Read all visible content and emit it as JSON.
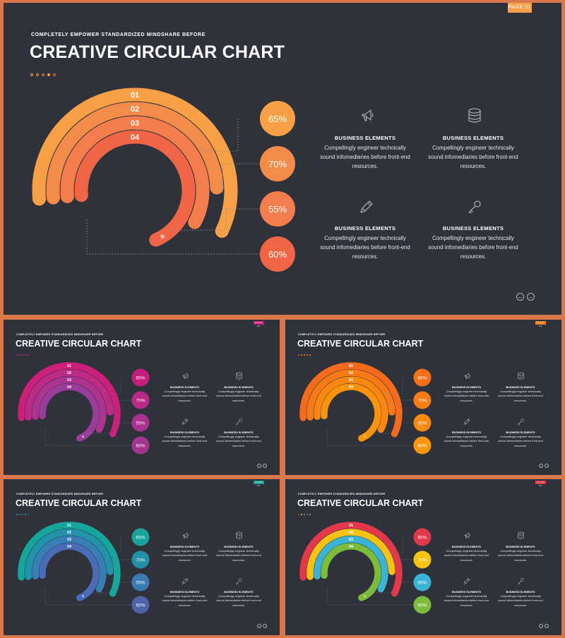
{
  "slides": [
    {
      "page": "PAGE 01",
      "tag_color": "#f7a045",
      "subtitle": "COMPLETELY EMPOWER STANDARDIZED MINDSHARE BEFORE",
      "title": "CREATIVE CIRCULAR CHART",
      "dot_colors": [
        "#f7a045",
        "#f49a4a",
        "#f2844a",
        "#f7a045",
        "#ef6840"
      ],
      "ring_labels": [
        "01",
        "02",
        "03",
        "04"
      ],
      "ring_colors": [
        "#f7a045",
        "#f38c4a",
        "#f37d4c",
        "#ef6545"
      ],
      "percents": [
        "65%",
        "70%",
        "55%",
        "60%"
      ],
      "circle_colors": [
        "#f7a045",
        "#f38c4a",
        "#f37d4c",
        "#ef6545"
      ]
    },
    {
      "page": "PAGE 01",
      "tag_color": "#d81b7a",
      "subtitle": "COMPLETELY EMPOWER STANDARDIZED MINDSHARE BEFORE",
      "title": "CREATIVE CIRCULAR CHART",
      "dot_colors": [
        "#d81b7a",
        "#c82a84",
        "#b43492",
        "#d81b7a",
        "#a23aa0"
      ],
      "ring_labels": [
        "01",
        "02",
        "03",
        "04"
      ],
      "ring_colors": [
        "#cc1f7c",
        "#bc2b85",
        "#ac348f",
        "#9a3c9a"
      ],
      "percents": [
        "65%",
        "70%",
        "55%",
        "60%"
      ],
      "circle_colors": [
        "#c41f7e",
        "#b92a86",
        "#aa318e",
        "#a4358f"
      ]
    },
    {
      "page": "PAGE 01",
      "tag_color": "#f57c1f",
      "subtitle": "COMPLETELY EMPOWER STANDARDIZED MINDSHARE BEFORE",
      "title": "CREATIVE CIRCULAR CHART",
      "dot_colors": [
        "#f57c1f",
        "#f7891a",
        "#f99313",
        "#f57c1f",
        "#fb9e0e"
      ],
      "ring_labels": [
        "01",
        "02",
        "03",
        "04"
      ],
      "ring_colors": [
        "#f56b1b",
        "#f77a16",
        "#f98712",
        "#fb940d"
      ],
      "percents": [
        "65%",
        "70%",
        "55%",
        "60%"
      ],
      "circle_colors": [
        "#f57016",
        "#f77c13",
        "#f98910",
        "#fb960d"
      ]
    },
    {
      "page": "PAGE 01",
      "tag_color": "#1aa39a",
      "subtitle": "COMPLETELY EMPOWER STANDARDIZED MINDSHARE BEFORE",
      "title": "CREATIVE CIRCULAR CHART",
      "dot_colors": [
        "#1aa39a",
        "#2b8fa8",
        "#3b7ab0",
        "#1aa39a",
        "#4a68b2"
      ],
      "ring_labels": [
        "01",
        "02",
        "03",
        "04"
      ],
      "ring_colors": [
        "#16a59a",
        "#2392ab",
        "#377fb5",
        "#4a6bb5"
      ],
      "percents": [
        "65%",
        "70%",
        "55%",
        "60%"
      ],
      "circle_colors": [
        "#1aa39a",
        "#248fa9",
        "#3a7cb2",
        "#4d64ab"
      ]
    },
    {
      "page": "PAGE 01",
      "tag_color": "#e2384a",
      "subtitle": "COMPLETELY EMPOWER STANDARDIZED MINDSHARE BEFORE",
      "title": "CREATIVE CIRCULAR CHART",
      "dot_colors": [
        "#e2384a",
        "#f2c511",
        "#3cb2d0",
        "#e2384a",
        "#7cbc3b"
      ],
      "ring_labels": [
        "01",
        "02",
        "03",
        "04"
      ],
      "ring_colors": [
        "#e2384a",
        "#f6c313",
        "#3ab4d6",
        "#7bbd3a"
      ],
      "percents": [
        "65%",
        "70%",
        "55%",
        "60%"
      ],
      "circle_colors": [
        "#e2384a",
        "#f6c313",
        "#3ab4d6",
        "#7bbd3a"
      ]
    }
  ],
  "features": [
    {
      "icon": "megaphone-icon",
      "title": "BUSINESS  ELEMENTS",
      "lines": [
        "Compellingly engineer technically",
        "sound infomediaries before front-end",
        "resources."
      ]
    },
    {
      "icon": "database-icon",
      "title": "BUSINESS  ELEMENTS",
      "lines": [
        "Compellingly engineer technically",
        "sound infomediaries before front-end",
        "resources."
      ]
    },
    {
      "icon": "pencil-icon",
      "title": "BUSINESS  ELEMENTS",
      "lines": [
        "Compellingly engineer technically",
        "sound infomediaries before front-end",
        "resources."
      ]
    },
    {
      "icon": "key-icon",
      "title": "BUSINESS  ELEMENTS",
      "lines": [
        "Compellingly engineer technically",
        "sound infomediaries before front-end",
        "resources."
      ]
    }
  ],
  "chart_data": {
    "type": "radial-bar",
    "categories": [
      "01",
      "02",
      "03",
      "04"
    ],
    "values": [
      65,
      70,
      55,
      60
    ],
    "value_labels": [
      "65%",
      "70%",
      "55%",
      "60%"
    ],
    "track_color": "#4b4e59"
  },
  "nav": {
    "prev": "←",
    "next": "→"
  }
}
